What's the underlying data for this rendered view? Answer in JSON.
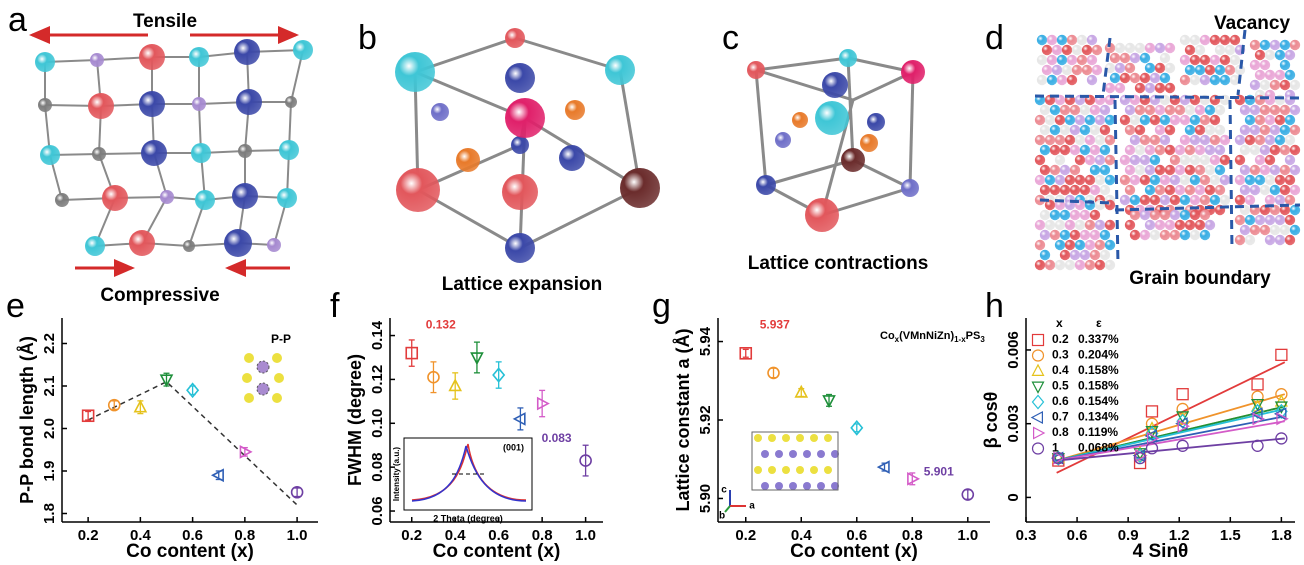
{
  "panels": {
    "a": {
      "letter": "a",
      "top_label": "Tensile",
      "bottom_label": "Compressive"
    },
    "b": {
      "letter": "b",
      "caption": "Lattice expansion"
    },
    "c": {
      "letter": "c",
      "caption": "Lattice contractions"
    },
    "d": {
      "letter": "d",
      "top_label": "Vacancy",
      "caption": "Grain boundary"
    }
  },
  "chart_data": [
    {
      "type": "scatter",
      "label": "e",
      "xlabel": "Co content (x)",
      "ylabel": "P-P bond length (Å)",
      "x": [
        0.2,
        0.3,
        0.4,
        0.5,
        0.6,
        0.7,
        0.8,
        1.0
      ],
      "values": [
        2.03,
        2.055,
        2.05,
        2.115,
        2.09,
        1.89,
        1.945,
        1.85
      ],
      "errors": [
        0.01,
        0.01,
        0.015,
        0.015,
        0.01,
        0.01,
        0.01,
        0.01
      ],
      "colors": [
        "#e23b3b",
        "#f0932b",
        "#e5c21c",
        "#1e8f3a",
        "#26c0d6",
        "#2f5fb5",
        "#d45bc8",
        "#6e3fa3"
      ],
      "markers": [
        "square",
        "circle",
        "up",
        "down",
        "diamond",
        "left",
        "right",
        "circle"
      ],
      "trend": {
        "x": [
          0.2,
          0.5,
          1.0
        ],
        "values": [
          2.02,
          2.11,
          1.82
        ]
      },
      "inset_label": "P-P",
      "xlim": [
        0.1,
        1.08
      ],
      "ylim": [
        1.78,
        2.26
      ],
      "xticks": [
        0.2,
        0.4,
        0.6,
        0.8,
        {
          "value": 1.0,
          "label": "1.0"
        }
      ],
      "yticks": [
        1.8,
        1.9,
        {
          "value": 2.0,
          "label": "2.0"
        },
        2.1,
        2.2
      ]
    },
    {
      "type": "scatter",
      "label": "f",
      "xlabel": "Co content (x)",
      "ylabel": "FWHM (degree)",
      "x": [
        0.2,
        0.3,
        0.4,
        0.5,
        0.6,
        0.7,
        0.8,
        1.0
      ],
      "values": [
        0.132,
        0.121,
        0.117,
        0.13,
        0.122,
        0.102,
        0.109,
        0.083
      ],
      "errors": [
        0.006,
        0.007,
        0.006,
        0.007,
        0.006,
        0.005,
        0.006,
        0.007
      ],
      "colors": [
        "#e23b3b",
        "#f0932b",
        "#e5c21c",
        "#1e8f3a",
        "#26c0d6",
        "#2f5fb5",
        "#d45bc8",
        "#6e3fa3"
      ],
      "markers": [
        "square",
        "circle",
        "up",
        "down",
        "diamond",
        "left",
        "right",
        "circle"
      ],
      "annotations": [
        "0.132",
        "0.083"
      ],
      "inset": {
        "title": "(001)",
        "xlabel": "2 Theta (degree)",
        "ylabel": "Intensity (a.u.)"
      },
      "xlim": [
        0.1,
        1.08
      ],
      "ylim": [
        0.055,
        0.148
      ],
      "xticks": [
        0.2,
        0.4,
        0.6,
        0.8,
        {
          "value": 1.0,
          "label": "1.0"
        }
      ],
      "yticks": [
        0.06,
        0.08,
        {
          "value": 0.1,
          "label": "0.10"
        },
        0.12,
        0.14
      ]
    },
    {
      "type": "scatter",
      "label": "g",
      "xlabel": "Co content (x)",
      "ylabel": "Lattice constant a (Å)",
      "x": [
        0.2,
        0.3,
        0.4,
        0.5,
        0.6,
        0.7,
        0.8,
        1.0
      ],
      "values": [
        5.937,
        5.932,
        5.927,
        5.925,
        5.918,
        5.908,
        5.905,
        5.901
      ],
      "errors": [
        0.001,
        0.0012,
        0.001,
        0.0015,
        0.001,
        0.001,
        0.0015,
        0.0012
      ],
      "colors": [
        "#e23b3b",
        "#f0932b",
        "#e5c21c",
        "#1e8f3a",
        "#26c0d6",
        "#2f5fb5",
        "#d45bc8",
        "#6e3fa3"
      ],
      "markers": [
        "square",
        "circle",
        "up",
        "down",
        "diamond",
        "left",
        "right",
        "circle"
      ],
      "annotations": [
        "5.937",
        "5.901"
      ],
      "formula": [
        {
          "text": "Co"
        },
        {
          "text": "x",
          "sub": true
        },
        {
          "text": "(VMnNiZn)"
        },
        {
          "text": "1-x",
          "sub": true
        },
        {
          "text": "PS"
        },
        {
          "text": "3",
          "sub": true
        }
      ],
      "inset": {
        "axes": [
          "c",
          "b",
          "a"
        ]
      },
      "xlim": [
        0.1,
        1.08
      ],
      "ylim": [
        5.894,
        5.946
      ],
      "xticks": [
        0.2,
        0.4,
        0.6,
        0.8,
        {
          "value": 1.0,
          "label": "1.0"
        }
      ],
      "yticks": [
        {
          "value": 5.9,
          "label": "5.90"
        },
        5.92,
        5.94
      ]
    },
    {
      "type": "scatter_fit",
      "label": "h",
      "xlabel": "4 Sinθ",
      "ylabel": "β cosθ",
      "legend_title": [
        "x",
        "ε"
      ],
      "x": [
        0.49,
        0.97,
        1.04,
        1.22,
        1.66,
        1.8
      ],
      "fit_x": [
        0.48,
        1.82
      ],
      "xlim": [
        0.3,
        1.88
      ],
      "ylim": [
        -0.001,
        0.0073
      ],
      "xticks": [
        0.3,
        0.6,
        0.9,
        1.2,
        1.5,
        1.8
      ],
      "yticks": [
        0,
        0.003,
        0.006
      ],
      "series": [
        {
          "name": "0.2",
          "strain": "0.337%",
          "color": "#e23b3b",
          "marker": "square",
          "values": [
            0.0015,
            0.0014,
            0.0035,
            0.0042,
            0.0046,
            0.0058
          ],
          "fit": [
            0.001,
            0.0055
          ]
        },
        {
          "name": "0.3",
          "strain": "0.204%",
          "color": "#f0932b",
          "marker": "circle",
          "values": [
            0.0016,
            0.0017,
            0.003,
            0.0036,
            0.0041,
            0.0042
          ],
          "fit": [
            0.0015,
            0.0042
          ]
        },
        {
          "name": "0.4",
          "strain": "0.158%",
          "color": "#e5c21c",
          "marker": "up",
          "values": [
            0.0016,
            0.0018,
            0.0028,
            0.0032,
            0.0037,
            0.0039
          ],
          "fit": [
            0.0015,
            0.0037
          ]
        },
        {
          "name": "0.5",
          "strain": "0.158%",
          "color": "#1e8f3a",
          "marker": "down",
          "values": [
            0.0016,
            0.0018,
            0.0027,
            0.0033,
            0.0038,
            0.0037
          ],
          "fit": [
            0.0015,
            0.0037
          ]
        },
        {
          "name": "0.6",
          "strain": "0.154%",
          "color": "#26c0d6",
          "marker": "diamond",
          "values": [
            0.0016,
            0.0017,
            0.0026,
            0.0031,
            0.0035,
            0.0035
          ],
          "fit": [
            0.0015,
            0.0036
          ]
        },
        {
          "name": "0.7",
          "strain": "0.134%",
          "color": "#2f5fb5",
          "marker": "left",
          "values": [
            0.0016,
            0.0017,
            0.0025,
            0.003,
            0.0034,
            0.0034
          ],
          "fit": [
            0.0015,
            0.0033
          ]
        },
        {
          "name": "0.8",
          "strain": "0.119%",
          "color": "#d45bc8",
          "marker": "right",
          "values": [
            0.0016,
            0.0017,
            0.0024,
            0.0029,
            0.0032,
            0.0032
          ],
          "fit": [
            0.0015,
            0.0031
          ]
        },
        {
          "name": "1",
          "strain": "0.068%",
          "color": "#6e3fa3",
          "marker": "circle",
          "values": [
            0.0016,
            0.0016,
            0.002,
            0.0021,
            0.0021,
            0.0024
          ],
          "fit": [
            0.0015,
            0.0024
          ]
        }
      ]
    }
  ]
}
